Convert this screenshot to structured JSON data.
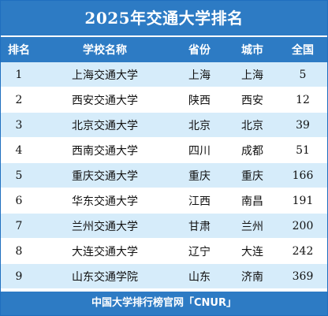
{
  "title": "2025年交通大学排名",
  "headers": {
    "rank": "排名",
    "school": "学校名称",
    "province": "省份",
    "city": "城市",
    "national": "全国"
  },
  "rows": [
    {
      "rank": "1",
      "school": "上海交通大学",
      "province": "上海",
      "city": "上海",
      "national": "5"
    },
    {
      "rank": "2",
      "school": "西安交通大学",
      "province": "陕西",
      "city": "西安",
      "national": "12"
    },
    {
      "rank": "3",
      "school": "北京交通大学",
      "province": "北京",
      "city": "北京",
      "national": "39"
    },
    {
      "rank": "4",
      "school": "西南交通大学",
      "province": "四川",
      "city": "成都",
      "national": "51"
    },
    {
      "rank": "5",
      "school": "重庆交通大学",
      "province": "重庆",
      "city": "重庆",
      "national": "166"
    },
    {
      "rank": "6",
      "school": "华东交通大学",
      "province": "江西",
      "city": "南昌",
      "national": "191"
    },
    {
      "rank": "7",
      "school": "兰州交通大学",
      "province": "甘肃",
      "city": "兰州",
      "national": "200"
    },
    {
      "rank": "8",
      "school": "大连交通大学",
      "province": "辽宁",
      "city": "大连",
      "national": "242"
    },
    {
      "rank": "9",
      "school": "山东交通学院",
      "province": "山东",
      "city": "济南",
      "national": "369"
    }
  ],
  "footer": "中国大学排行榜官网「CNUR」",
  "colors": {
    "primary": "#2d7bc4",
    "stripe": "#d6ecfa"
  }
}
